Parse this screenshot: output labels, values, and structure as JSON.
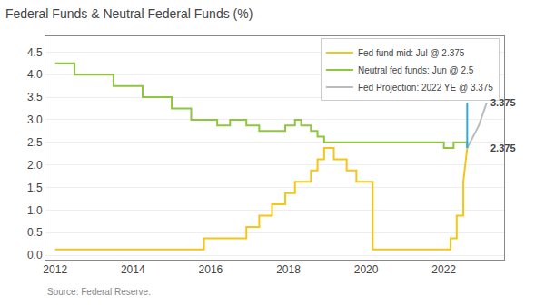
{
  "chart_data": {
    "type": "line",
    "title": "Federal Funds & Neutral Federal Funds (%)",
    "source": "Source: Federal Reserve.",
    "series": [
      {
        "name": "Fed fund mid: Jul @ 2.375",
        "color": "#f5c518",
        "x": [
          2012.0,
          2015.83,
          2015.83,
          2016.92,
          2016.92,
          2017.25,
          2017.25,
          2017.58,
          2017.58,
          2017.92,
          2017.92,
          2018.17,
          2018.17,
          2018.58,
          2018.58,
          2018.75,
          2018.75,
          2018.92,
          2018.92,
          2019.17,
          2019.17,
          2019.5,
          2019.5,
          2019.75,
          2019.75,
          2020.17,
          2020.17,
          2022.17,
          2022.17,
          2022.33,
          2022.33,
          2022.5,
          2022.5,
          2022.6
        ],
        "values": [
          0.125,
          0.125,
          0.375,
          0.375,
          0.625,
          0.625,
          0.875,
          0.875,
          1.125,
          1.125,
          1.375,
          1.375,
          1.625,
          1.625,
          1.875,
          1.875,
          2.125,
          2.125,
          2.375,
          2.375,
          2.125,
          2.125,
          1.875,
          1.875,
          1.625,
          1.625,
          0.125,
          0.125,
          0.375,
          0.375,
          0.875,
          0.875,
          1.625,
          2.375
        ]
      },
      {
        "name": "Neutral fed funds: Jun @ 2.5",
        "color": "#8dc63f",
        "x": [
          2012.0,
          2012.5,
          2012.5,
          2013.5,
          2013.5,
          2014.25,
          2014.25,
          2015.0,
          2015.0,
          2015.5,
          2015.5,
          2016.17,
          2016.17,
          2016.5,
          2016.5,
          2016.92,
          2016.92,
          2017.25,
          2017.25,
          2017.92,
          2017.92,
          2018.17,
          2018.17,
          2018.33,
          2018.33,
          2018.58,
          2018.58,
          2018.75,
          2018.75,
          2018.92,
          2018.92,
          2022.0,
          2022.0,
          2022.25,
          2022.25,
          2022.6,
          2022.6
        ],
        "values": [
          4.25,
          4.25,
          4.0,
          4.0,
          3.75,
          3.75,
          3.5,
          3.5,
          3.25,
          3.25,
          3.0,
          3.0,
          2.875,
          2.875,
          3.0,
          3.0,
          2.875,
          2.875,
          2.75,
          2.75,
          2.875,
          2.875,
          3.0,
          3.0,
          2.875,
          2.875,
          2.75,
          2.75,
          2.625,
          2.625,
          2.5,
          2.5,
          2.375,
          2.375,
          2.5,
          2.5,
          2.375
        ]
      },
      {
        "name": "Fed Projection: 2022 YE @ 3.375",
        "color": "#b8bcc2",
        "x": [
          2022.6,
          2022.9,
          2023.1
        ],
        "values": [
          2.375,
          2.875,
          3.375
        ]
      },
      {
        "color": "#29abe2",
        "x": [
          2022.6,
          2022.6
        ],
        "values": [
          2.375,
          3.375
        ]
      }
    ],
    "annotations": [
      {
        "text": "3.375",
        "x": 2023.15,
        "y": 3.375
      },
      {
        "text": "2.375",
        "x": 2023.15,
        "y": 2.375
      }
    ],
    "xlim": [
      2011.75,
      2023.55
    ],
    "xticks": [
      2012,
      2014,
      2016,
      2018,
      2020,
      2022
    ],
    "ylim": [
      -0.1,
      4.85
    ],
    "yticks": [
      {
        "value": 0.0,
        "label": "0.0"
      },
      0.5,
      {
        "value": 1.0,
        "label": "1.0"
      },
      1.5,
      {
        "value": 2.0,
        "label": "2.0"
      },
      2.5,
      {
        "value": 3.0,
        "label": "3.0"
      },
      3.5,
      {
        "value": 4.0,
        "label": "4.0"
      },
      4.5
    ],
    "grid": "y",
    "legend": "upper right"
  }
}
